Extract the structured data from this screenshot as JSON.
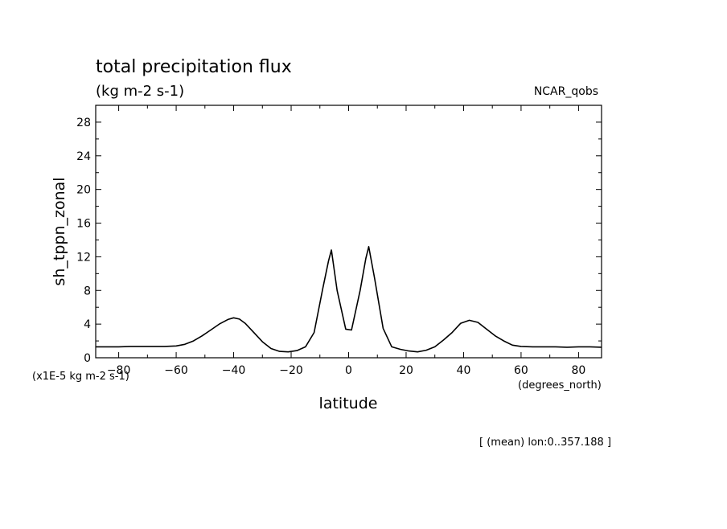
{
  "chart_data": {
    "type": "line",
    "title": "total precipitation flux",
    "subtitle": "(kg m-2 s-1)",
    "dataset": "NCAR_qobs",
    "xlabel": "latitude",
    "ylabel": "sh_tppn_zonal",
    "x_units": "(degrees_north)",
    "y_scale_label": "(x1E-5 kg m-2 s-1)",
    "annotation": "[ (mean) lon:0..357.188 ]",
    "xlim": [
      -88,
      88
    ],
    "ylim": [
      0,
      30
    ],
    "x_ticks": [
      -80,
      -60,
      -40,
      -20,
      0,
      20,
      40,
      60,
      80
    ],
    "y_ticks": [
      0,
      4,
      8,
      12,
      16,
      20,
      24,
      28
    ],
    "grid": false,
    "series": [
      {
        "x": [
          -88,
          -84,
          -80,
          -76,
          -72,
          -68,
          -64,
          -60,
          -57,
          -54,
          -51,
          -48,
          -45,
          -42,
          -40,
          -38,
          -36,
          -33,
          -30,
          -27,
          -24,
          -21,
          -18,
          -15,
          -12,
          -9,
          -7,
          -6,
          -4,
          -1,
          1,
          4,
          6,
          7,
          9,
          12,
          15,
          18,
          21,
          24,
          27,
          30,
          33,
          36,
          39,
          42,
          45,
          48,
          51,
          54,
          57,
          60,
          64,
          68,
          72,
          76,
          80,
          84,
          88
        ],
        "y": [
          1.3,
          1.3,
          1.3,
          1.35,
          1.35,
          1.35,
          1.35,
          1.4,
          1.6,
          2.0,
          2.6,
          3.3,
          4.0,
          4.55,
          4.75,
          4.6,
          4.1,
          3.0,
          1.9,
          1.1,
          0.75,
          0.7,
          0.85,
          1.3,
          3.0,
          8.2,
          11.5,
          12.8,
          8.0,
          3.4,
          3.3,
          8.0,
          11.8,
          13.2,
          9.5,
          3.5,
          1.3,
          1.0,
          0.8,
          0.7,
          0.9,
          1.3,
          2.1,
          3.0,
          4.1,
          4.45,
          4.2,
          3.4,
          2.6,
          2.0,
          1.5,
          1.35,
          1.3,
          1.3,
          1.3,
          1.25,
          1.3,
          1.3,
          1.25
        ]
      }
    ]
  }
}
